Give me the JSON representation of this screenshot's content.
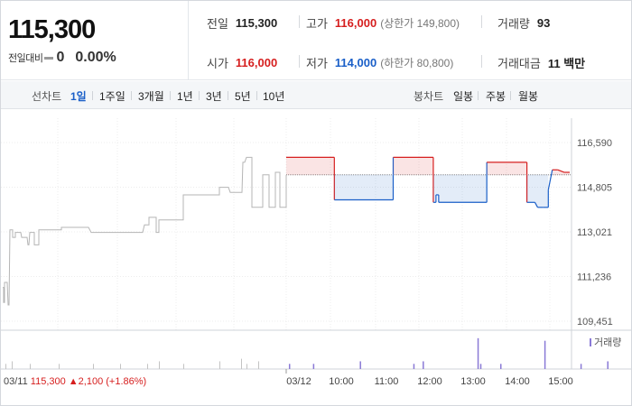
{
  "quote": {
    "price": "115,300",
    "change_label": "전일대비",
    "change_value": "0",
    "change_pct": "0.00%"
  },
  "stats": {
    "prev_close_label": "전일",
    "prev_close": "115,300",
    "high_label": "고가",
    "high": "116,000",
    "upper_limit": "(상한가 149,800)",
    "volume_label": "거래량",
    "volume": "93",
    "open_label": "시가",
    "open": "116,000",
    "low_label": "저가",
    "low": "114,000",
    "lower_limit": "(하한가 80,800)",
    "amount_label": "거래대금",
    "amount": "11 백만"
  },
  "toolbar": {
    "line_chart_label": "선차트",
    "periods": [
      "1일",
      "1주일",
      "3개월",
      "1년",
      "3년",
      "5년",
      "10년"
    ],
    "active_period": "1일",
    "candle_chart_label": "봉차트",
    "candle_periods": [
      "일봉",
      "주봉",
      "월봉"
    ]
  },
  "colors": {
    "up": "#d61f1f",
    "down": "#1a5fc8",
    "grid": "#e6e6e6",
    "prev_line": "#888888"
  },
  "chart_data": {
    "type": "line",
    "ylim": [
      109000,
      117000
    ],
    "y_ticks": [
      "116,590",
      "114,805",
      "113,021",
      "111,236",
      "109,451"
    ],
    "y_tick_values": [
      116590,
      114805,
      113021,
      111236,
      109451
    ],
    "prev_close": 115300,
    "x_labels_main": [
      "03/12",
      "10:00",
      "11:00",
      "12:00",
      "13:00",
      "14:00",
      "15:00"
    ],
    "previous_day": {
      "date": "03/11",
      "close": "115,300",
      "change": "2,100",
      "change_pct": "(+1.86%)",
      "series": [
        [
          0,
          110800
        ],
        [
          1,
          110800
        ],
        [
          1,
          110200
        ],
        [
          2,
          110200
        ],
        [
          2,
          111000
        ],
        [
          5,
          111000
        ],
        [
          6,
          110100
        ],
        [
          7,
          110100
        ],
        [
          8,
          113100
        ],
        [
          11,
          113100
        ],
        [
          11,
          112800
        ],
        [
          14,
          112800
        ],
        [
          14,
          113000
        ],
        [
          20,
          113000
        ],
        [
          21,
          112800
        ],
        [
          27,
          112800
        ],
        [
          28,
          112500
        ],
        [
          29,
          112500
        ],
        [
          30,
          113000
        ],
        [
          35,
          113000
        ],
        [
          35,
          112500
        ],
        [
          40,
          112500
        ],
        [
          40,
          113100
        ],
        [
          65,
          113100
        ],
        [
          65,
          113200
        ],
        [
          95,
          113200
        ],
        [
          98,
          113000
        ],
        [
          155,
          113000
        ],
        [
          157,
          113300
        ],
        [
          162,
          113300
        ],
        [
          162,
          113600
        ],
        [
          170,
          113600
        ],
        [
          170,
          113000
        ],
        [
          173,
          113000
        ],
        [
          173,
          113500
        ],
        [
          200,
          113500
        ],
        [
          200,
          114500
        ],
        [
          240,
          114500
        ],
        [
          240,
          114800
        ],
        [
          250,
          114800
        ],
        [
          252,
          114600
        ],
        [
          265,
          114600
        ],
        [
          266,
          115800
        ],
        [
          268,
          115800
        ],
        [
          270,
          116000
        ],
        [
          276,
          116000
        ],
        [
          276,
          114000
        ],
        [
          280,
          114000
        ],
        [
          280,
          114000
        ],
        [
          288,
          114000
        ],
        [
          288,
          115300
        ],
        [
          295,
          115300
        ],
        [
          295,
          114000
        ],
        [
          302,
          114000
        ],
        [
          302,
          115400
        ],
        [
          307,
          115400
        ],
        [
          307,
          114000
        ],
        [
          314,
          114000
        ],
        [
          314,
          115300
        ]
      ]
    },
    "intraday_series": [
      [
        0,
        116000
      ],
      [
        36,
        116000
      ],
      [
        36,
        114300
      ],
      [
        80,
        114300
      ],
      [
        80,
        116000
      ],
      [
        110,
        116000
      ],
      [
        110,
        114200
      ],
      [
        112,
        114200
      ],
      [
        112,
        114500
      ],
      [
        114,
        114500
      ],
      [
        114,
        114200
      ],
      [
        150,
        114200
      ],
      [
        150,
        115800
      ],
      [
        180,
        115800
      ],
      [
        180,
        114200
      ],
      [
        186,
        114200
      ],
      [
        188,
        114000
      ],
      [
        192,
        114000
      ],
      [
        192,
        114000
      ],
      [
        196,
        114000
      ],
      [
        196,
        114700
      ],
      [
        199,
        115500
      ],
      [
        203,
        115500
      ],
      [
        208,
        115400
      ],
      [
        212,
        115400
      ]
    ],
    "volume_legend": "거래량",
    "volume_bars_prev": [
      [
        3,
        2
      ],
      [
        10,
        3
      ],
      [
        30,
        2
      ],
      [
        62,
        2
      ],
      [
        100,
        2
      ],
      [
        130,
        2
      ],
      [
        160,
        2
      ],
      [
        173,
        3
      ],
      [
        200,
        2
      ],
      [
        240,
        3
      ],
      [
        264,
        4
      ],
      [
        270,
        2
      ],
      [
        283,
        3
      ]
    ],
    "volume_bars_day": [
      [
        2,
        2
      ],
      [
        20,
        2
      ],
      [
        55,
        3
      ],
      [
        95,
        2
      ],
      [
        102,
        3
      ],
      [
        143,
        12
      ],
      [
        145,
        2
      ],
      [
        160,
        2
      ],
      [
        193,
        11
      ],
      [
        220,
        2
      ],
      [
        240,
        3
      ],
      [
        275,
        9
      ],
      [
        289,
        2
      ],
      [
        298,
        6
      ],
      [
        306,
        4
      ]
    ]
  }
}
